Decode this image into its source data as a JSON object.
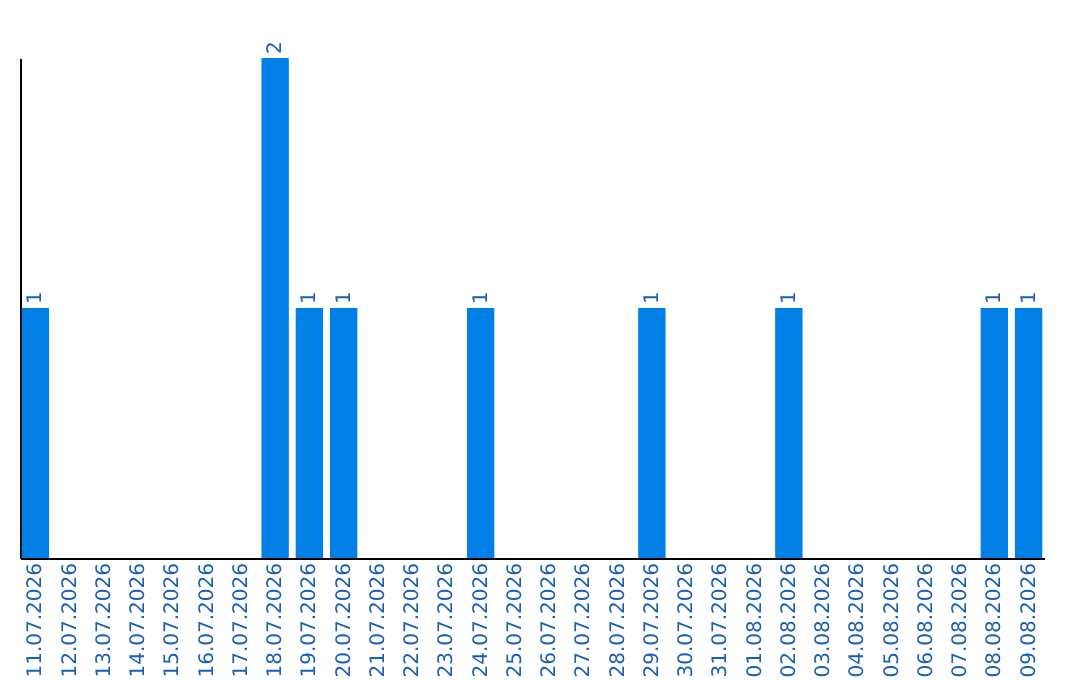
{
  "chart_data": {
    "type": "bar",
    "categories": [
      "11.07.2026",
      "12.07.2026",
      "13.07.2026",
      "14.07.2026",
      "15.07.2026",
      "16.07.2026",
      "17.07.2026",
      "18.07.2026",
      "19.07.2026",
      "20.07.2026",
      "21.07.2026",
      "22.07.2026",
      "23.07.2026",
      "24.07.2026",
      "25.07.2026",
      "26.07.2026",
      "27.07.2026",
      "28.07.2026",
      "29.07.2026",
      "30.07.2026",
      "31.07.2026",
      "01.08.2026",
      "02.08.2026",
      "03.08.2026",
      "04.08.2026",
      "05.08.2026",
      "06.08.2026",
      "07.08.2026",
      "08.08.2026",
      "09.08.2026"
    ],
    "values": [
      1,
      0,
      0,
      0,
      0,
      0,
      0,
      2,
      1,
      1,
      0,
      0,
      0,
      1,
      0,
      0,
      0,
      0,
      1,
      0,
      0,
      0,
      1,
      0,
      0,
      0,
      0,
      0,
      1,
      1
    ],
    "value_labels": [
      "1",
      null,
      null,
      null,
      null,
      null,
      null,
      "2",
      "1",
      "1",
      null,
      null,
      null,
      "1",
      null,
      null,
      null,
      null,
      "1",
      null,
      null,
      null,
      "1",
      null,
      null,
      null,
      null,
      null,
      "1",
      "1"
    ],
    "color": "#0080e6",
    "grid": false
  }
}
